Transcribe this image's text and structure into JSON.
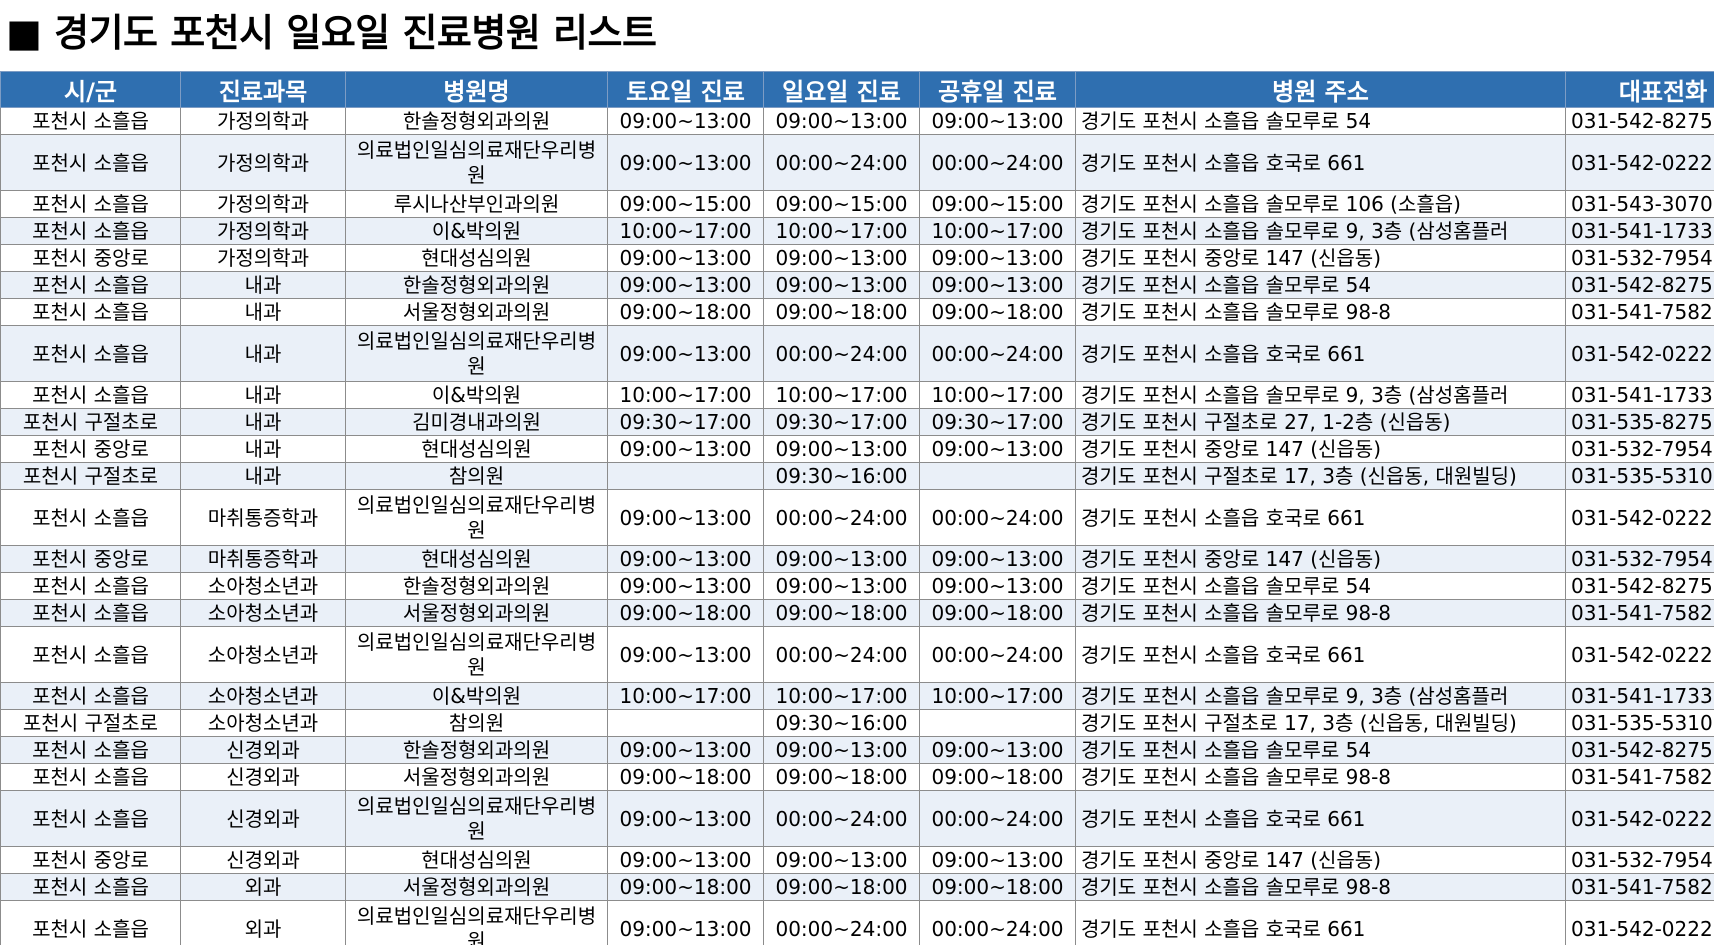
{
  "title": "■ 경기도 포천시 일요일 진료병원 리스트",
  "table": {
    "headers": [
      "시/군",
      "진료과목",
      "병원명",
      "토요일 진료",
      "일요일 진료",
      "공휴일 진료",
      "병원 주소",
      "대표전화"
    ],
    "rows": [
      [
        "포천시 소흘읍",
        "가정의학과",
        "한솔정형외과의원",
        "09:00~13:00",
        "09:00~13:00",
        "09:00~13:00",
        "경기도 포천시 소흘읍 솔모루로 54",
        "031-542-8275"
      ],
      [
        "포천시 소흘읍",
        "가정의학과",
        "의료법인일심의료재단우리병원",
        "09:00~13:00",
        "00:00~24:00",
        "00:00~24:00",
        "경기도 포천시 소흘읍 호국로 661",
        "031-542-0222"
      ],
      [
        "포천시 소흘읍",
        "가정의학과",
        "루시나산부인과의원",
        "09:00~15:00",
        "09:00~15:00",
        "09:00~15:00",
        "경기도 포천시 소흘읍 솔모루로 106 (소흘읍)",
        "031-543-3070"
      ],
      [
        "포천시 소흘읍",
        "가정의학과",
        "이&박의원",
        "10:00~17:00",
        "10:00~17:00",
        "10:00~17:00",
        "경기도 포천시 소흘읍 솔모루로 9, 3층 (삼성홈플러",
        "031-541-1733"
      ],
      [
        "포천시 중앙로",
        "가정의학과",
        "현대성심의원",
        "09:00~13:00",
        "09:00~13:00",
        "09:00~13:00",
        "경기도 포천시 중앙로 147 (신읍동)",
        "031-532-7954"
      ],
      [
        "포천시 소흘읍",
        "내과",
        "한솔정형외과의원",
        "09:00~13:00",
        "09:00~13:00",
        "09:00~13:00",
        "경기도 포천시 소흘읍 솔모루로 54",
        "031-542-8275"
      ],
      [
        "포천시 소흘읍",
        "내과",
        "서울정형외과의원",
        "09:00~18:00",
        "09:00~18:00",
        "09:00~18:00",
        "경기도 포천시 소흘읍 솔모루로 98-8",
        "031-541-7582"
      ],
      [
        "포천시 소흘읍",
        "내과",
        "의료법인일심의료재단우리병원",
        "09:00~13:00",
        "00:00~24:00",
        "00:00~24:00",
        "경기도 포천시 소흘읍 호국로 661",
        "031-542-0222"
      ],
      [
        "포천시 소흘읍",
        "내과",
        "이&박의원",
        "10:00~17:00",
        "10:00~17:00",
        "10:00~17:00",
        "경기도 포천시 소흘읍 솔모루로 9, 3층 (삼성홈플러",
        "031-541-1733"
      ],
      [
        "포천시 구절초로",
        "내과",
        "김미경내과의원",
        "09:30~17:00",
        "09:30~17:00",
        "09:30~17:00",
        "경기도 포천시 구절초로 27, 1-2층 (신읍동)",
        "031-535-8275"
      ],
      [
        "포천시 중앙로",
        "내과",
        "현대성심의원",
        "09:00~13:00",
        "09:00~13:00",
        "09:00~13:00",
        "경기도 포천시 중앙로 147 (신읍동)",
        "031-532-7954"
      ],
      [
        "포천시 구절초로",
        "내과",
        "참의원",
        "",
        "09:30~16:00",
        "",
        "경기도 포천시 구절초로 17, 3층 (신읍동, 대원빌딩)",
        "031-535-5310"
      ],
      [
        "포천시 소흘읍",
        "마취통증학과",
        "의료법인일심의료재단우리병원",
        "09:00~13:00",
        "00:00~24:00",
        "00:00~24:00",
        "경기도 포천시 소흘읍 호국로 661",
        "031-542-0222"
      ],
      [
        "포천시 중앙로",
        "마취통증학과",
        "현대성심의원",
        "09:00~13:00",
        "09:00~13:00",
        "09:00~13:00",
        "경기도 포천시 중앙로 147 (신읍동)",
        "031-532-7954"
      ],
      [
        "포천시 소흘읍",
        "소아청소년과",
        "한솔정형외과의원",
        "09:00~13:00",
        "09:00~13:00",
        "09:00~13:00",
        "경기도 포천시 소흘읍 솔모루로 54",
        "031-542-8275"
      ],
      [
        "포천시 소흘읍",
        "소아청소년과",
        "서울정형외과의원",
        "09:00~18:00",
        "09:00~18:00",
        "09:00~18:00",
        "경기도 포천시 소흘읍 솔모루로 98-8",
        "031-541-7582"
      ],
      [
        "포천시 소흘읍",
        "소아청소년과",
        "의료법인일심의료재단우리병원",
        "09:00~13:00",
        "00:00~24:00",
        "00:00~24:00",
        "경기도 포천시 소흘읍 호국로 661",
        "031-542-0222"
      ],
      [
        "포천시 소흘읍",
        "소아청소년과",
        "이&박의원",
        "10:00~17:00",
        "10:00~17:00",
        "10:00~17:00",
        "경기도 포천시 소흘읍 솔모루로 9, 3층 (삼성홈플러",
        "031-541-1733"
      ],
      [
        "포천시 구절초로",
        "소아청소년과",
        "참의원",
        "",
        "09:30~16:00",
        "",
        "경기도 포천시 구절초로 17, 3층 (신읍동, 대원빌딩)",
        "031-535-5310"
      ],
      [
        "포천시 소흘읍",
        "신경외과",
        "한솔정형외과의원",
        "09:00~13:00",
        "09:00~13:00",
        "09:00~13:00",
        "경기도 포천시 소흘읍 솔모루로 54",
        "031-542-8275"
      ],
      [
        "포천시 소흘읍",
        "신경외과",
        "서울정형외과의원",
        "09:00~18:00",
        "09:00~18:00",
        "09:00~18:00",
        "경기도 포천시 소흘읍 솔모루로 98-8",
        "031-541-7582"
      ],
      [
        "포천시 소흘읍",
        "신경외과",
        "의료법인일심의료재단우리병원",
        "09:00~13:00",
        "00:00~24:00",
        "00:00~24:00",
        "경기도 포천시 소흘읍 호국로 661",
        "031-542-0222"
      ],
      [
        "포천시 중앙로",
        "신경외과",
        "현대성심의원",
        "09:00~13:00",
        "09:00~13:00",
        "09:00~13:00",
        "경기도 포천시 중앙로 147 (신읍동)",
        "031-532-7954"
      ],
      [
        "포천시 소흘읍",
        "외과",
        "서울정형외과의원",
        "09:00~18:00",
        "09:00~18:00",
        "09:00~18:00",
        "경기도 포천시 소흘읍 솔모루로 98-8",
        "031-541-7582"
      ],
      [
        "포천시 소흘읍",
        "외과",
        "의료법인일심의료재단우리병원",
        "09:00~13:00",
        "00:00~24:00",
        "00:00~24:00",
        "경기도 포천시 소흘읍 호국로 661",
        "031-542-0222"
      ]
    ]
  }
}
